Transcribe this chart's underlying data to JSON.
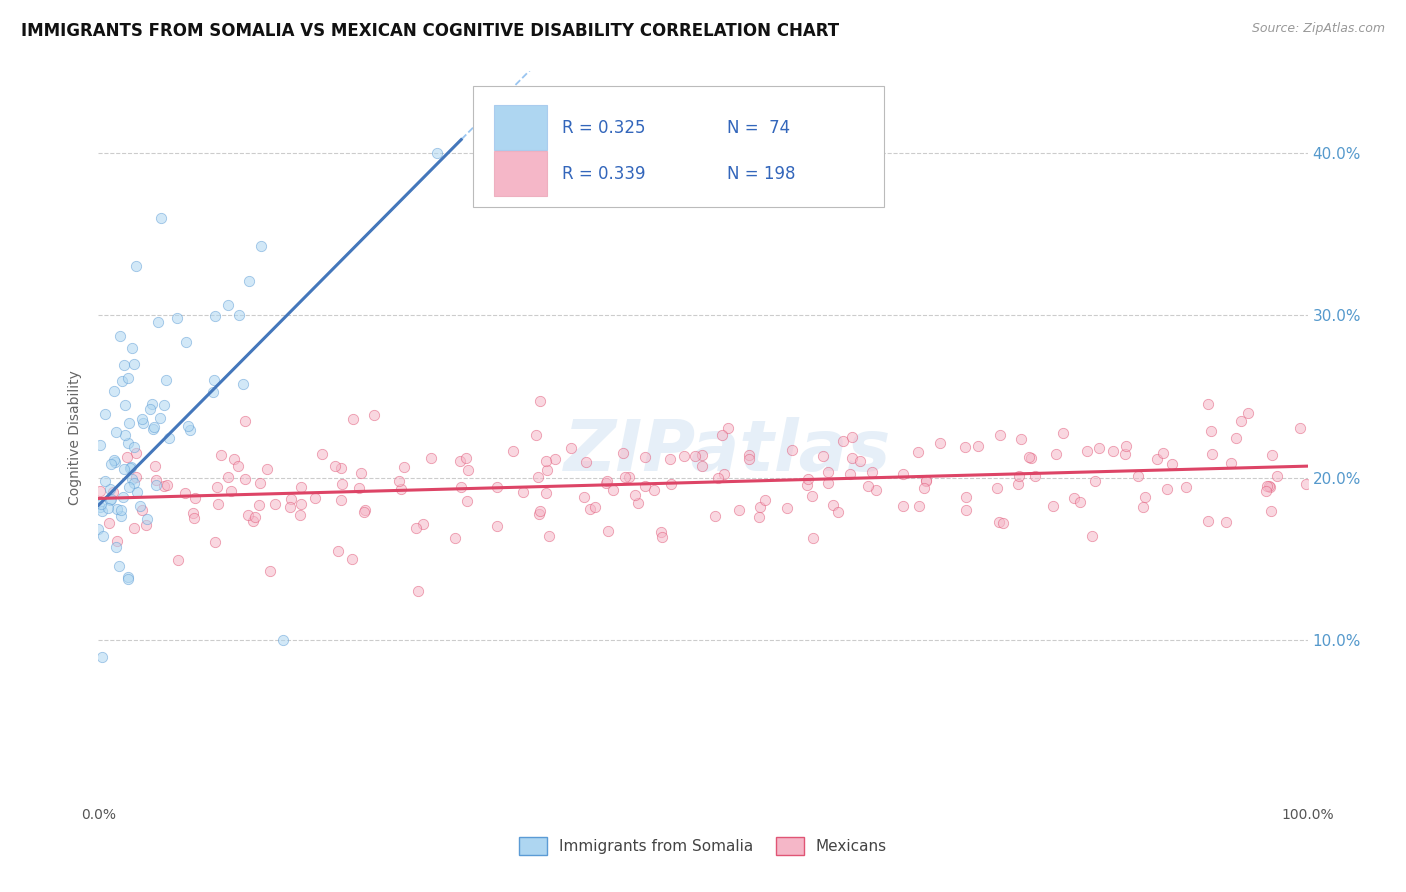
{
  "title": "IMMIGRANTS FROM SOMALIA VS MEXICAN COGNITIVE DISABILITY CORRELATION CHART",
  "source": "Source: ZipAtlas.com",
  "ylabel": "Cognitive Disability",
  "somalia_R": 0.325,
  "somalia_N": 74,
  "mexican_R": 0.339,
  "mexican_N": 198,
  "xlim": [
    0,
    1.0
  ],
  "ylim": [
    0,
    0.45
  ],
  "yticks": [
    0.1,
    0.2,
    0.3,
    0.4
  ],
  "ytick_labels": [
    "10.0%",
    "20.0%",
    "30.0%",
    "40.0%"
  ],
  "somalia_color": "#aed6f1",
  "somalia_edge_color": "#5b9bd5",
  "mexican_color": "#f5b7c8",
  "mexican_edge_color": "#e05575",
  "somalia_line_color": "#4477bb",
  "mexican_line_color": "#dd4466",
  "background_color": "#ffffff",
  "watermark_text": "ZIPatlas",
  "title_fontsize": 12,
  "axis_label_fontsize": 10,
  "tick_fontsize": 10,
  "dot_size": 55,
  "dot_alpha": 0.55,
  "legend_R1": "R = 0.325",
  "legend_N1": "N =  74",
  "legend_R2": "R = 0.339",
  "legend_N2": "N = 198",
  "bottom_legend_somalia": "Immigrants from Somalia",
  "bottom_legend_mexican": "Mexicans"
}
